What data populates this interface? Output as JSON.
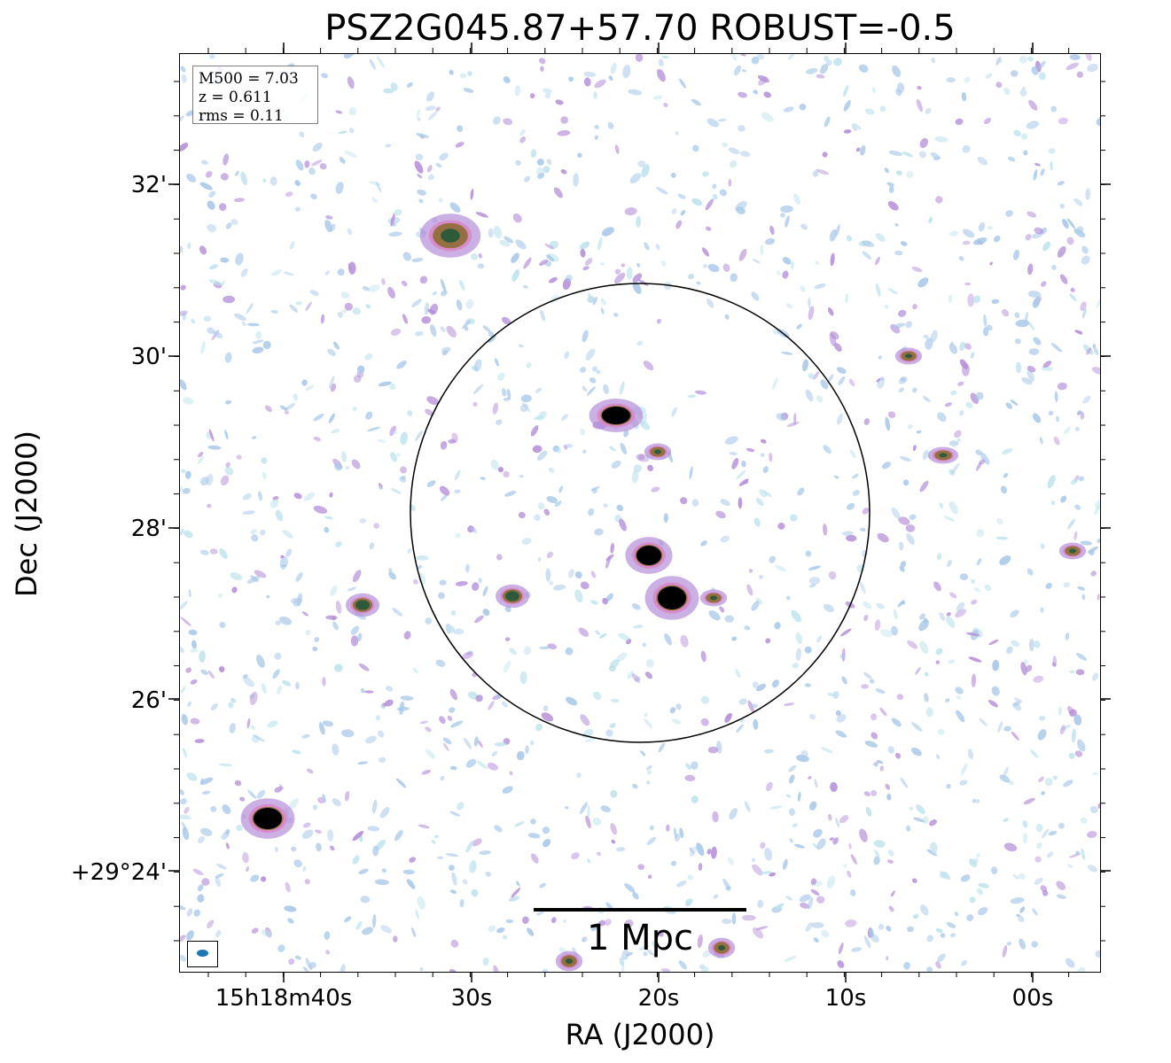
{
  "title": "PSZ2G045.87+57.70 ROBUST=-0.5",
  "info_box": [
    "M500 = 7.03",
    "z = 0.611",
    "rms = 0.11"
  ],
  "axes": {
    "x_title": "RA (J2000)",
    "y_title": "Dec (J2000)",
    "x_ticks": [
      "15h18m40s",
      "30s",
      "20s",
      "10s",
      "00s"
    ],
    "y_ticks": [
      "32'",
      "30'",
      "28'",
      "26'",
      "+29°24'"
    ]
  },
  "scale_bar": {
    "label": "1 Mpc"
  },
  "colors": {
    "noise_blue": "#a9c8e8",
    "noise_cyan": "#bfe3ec",
    "noise_purple": "#b48fd8",
    "source_pink": "#d98ac8",
    "source_core": "#000000",
    "circle": "#000000",
    "beam": "#1f77b4"
  }
}
